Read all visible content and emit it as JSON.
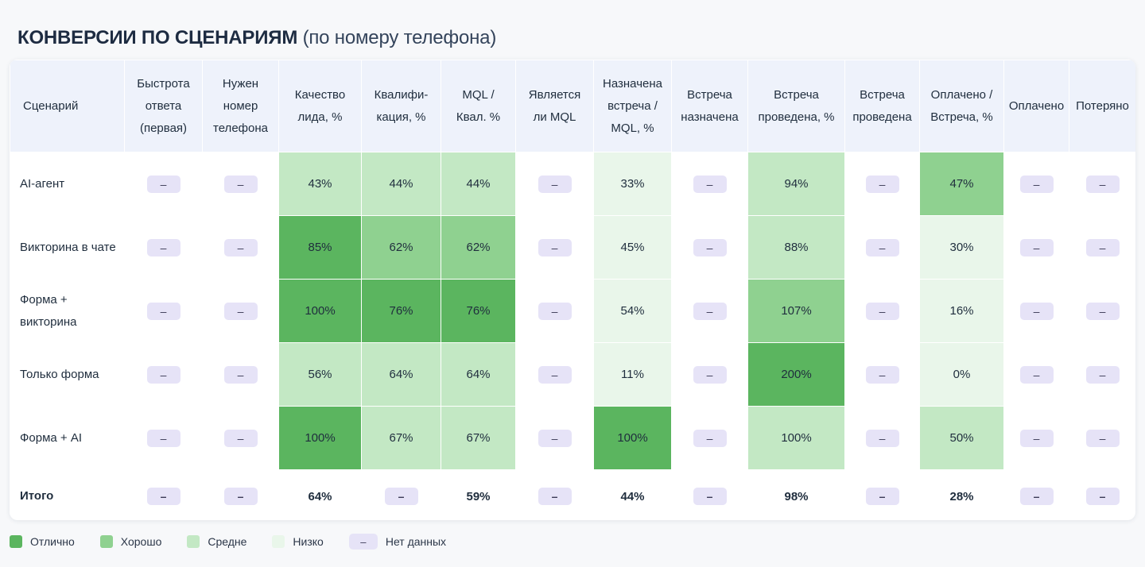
{
  "title": {
    "main": "КОНВЕРСИИ ПО СЦЕНАРИЯМ",
    "sub": "(по номеру телефона)"
  },
  "colors": {
    "excellent": "#5bb55f",
    "good": "#8fd190",
    "medium": "#c3e8c4",
    "low": "#e9f6ea",
    "no_data": "#e6e3f7",
    "header": "#eef2fb"
  },
  "table": {
    "columns": [
      [
        "Сценарий"
      ],
      [
        "Быстрота",
        "ответа",
        "(первая)"
      ],
      [
        "Нужен",
        "номер",
        "телефона"
      ],
      [
        "Качество",
        "лида, %"
      ],
      [
        "Квалифи-",
        "кация, %"
      ],
      [
        "MQL /",
        "Квал. %"
      ],
      [
        "Является",
        "ли MQL"
      ],
      [
        "Назначена",
        "встреча /",
        "MQL, %"
      ],
      [
        "Встреча",
        "назначена"
      ],
      [
        "Встреча",
        "проведена, %"
      ],
      [
        "Встреча",
        "проведена"
      ],
      [
        "Оплачено /",
        "Встреча, %"
      ],
      [
        "Оплачено"
      ],
      [
        "Потеряно"
      ]
    ],
    "rows": [
      {
        "scenario": [
          "AI-агент"
        ],
        "cells": [
          {
            "v": "–",
            "l": "na"
          },
          {
            "v": "–",
            "l": "na"
          },
          {
            "v": "43%",
            "l": "mid"
          },
          {
            "v": "44%",
            "l": "mid"
          },
          {
            "v": "44%",
            "l": "mid"
          },
          {
            "v": "–",
            "l": "na"
          },
          {
            "v": "33%",
            "l": "low"
          },
          {
            "v": "–",
            "l": "na"
          },
          {
            "v": "94%",
            "l": "mid"
          },
          {
            "v": "–",
            "l": "na"
          },
          {
            "v": "47%",
            "l": "good"
          },
          {
            "v": "–",
            "l": "na"
          },
          {
            "v": "–",
            "l": "na"
          }
        ]
      },
      {
        "scenario": [
          "Викторина в чате"
        ],
        "cells": [
          {
            "v": "–",
            "l": "na"
          },
          {
            "v": "–",
            "l": "na"
          },
          {
            "v": "85%",
            "l": "best"
          },
          {
            "v": "62%",
            "l": "good"
          },
          {
            "v": "62%",
            "l": "good"
          },
          {
            "v": "–",
            "l": "na"
          },
          {
            "v": "45%",
            "l": "low"
          },
          {
            "v": "–",
            "l": "na"
          },
          {
            "v": "88%",
            "l": "mid"
          },
          {
            "v": "–",
            "l": "na"
          },
          {
            "v": "30%",
            "l": "low"
          },
          {
            "v": "–",
            "l": "na"
          },
          {
            "v": "–",
            "l": "na"
          }
        ]
      },
      {
        "scenario": [
          "Форма +",
          "викторина"
        ],
        "cells": [
          {
            "v": "–",
            "l": "na"
          },
          {
            "v": "–",
            "l": "na"
          },
          {
            "v": "100%",
            "l": "best"
          },
          {
            "v": "76%",
            "l": "best"
          },
          {
            "v": "76%",
            "l": "best"
          },
          {
            "v": "–",
            "l": "na"
          },
          {
            "v": "54%",
            "l": "low"
          },
          {
            "v": "–",
            "l": "na"
          },
          {
            "v": "107%",
            "l": "good"
          },
          {
            "v": "–",
            "l": "na"
          },
          {
            "v": "16%",
            "l": "low"
          },
          {
            "v": "–",
            "l": "na"
          },
          {
            "v": "–",
            "l": "na"
          }
        ]
      },
      {
        "scenario": [
          "Только форма"
        ],
        "cells": [
          {
            "v": "–",
            "l": "na"
          },
          {
            "v": "–",
            "l": "na"
          },
          {
            "v": "56%",
            "l": "mid"
          },
          {
            "v": "64%",
            "l": "mid"
          },
          {
            "v": "64%",
            "l": "mid"
          },
          {
            "v": "–",
            "l": "na"
          },
          {
            "v": "11%",
            "l": "low"
          },
          {
            "v": "–",
            "l": "na"
          },
          {
            "v": "200%",
            "l": "best"
          },
          {
            "v": "–",
            "l": "na"
          },
          {
            "v": "0%",
            "l": "low"
          },
          {
            "v": "–",
            "l": "na"
          },
          {
            "v": "–",
            "l": "na"
          }
        ]
      },
      {
        "scenario": [
          "Форма + AI"
        ],
        "cells": [
          {
            "v": "–",
            "l": "na"
          },
          {
            "v": "–",
            "l": "na"
          },
          {
            "v": "100%",
            "l": "best"
          },
          {
            "v": "67%",
            "l": "mid"
          },
          {
            "v": "67%",
            "l": "mid"
          },
          {
            "v": "–",
            "l": "na"
          },
          {
            "v": "100%",
            "l": "best"
          },
          {
            "v": "–",
            "l": "na"
          },
          {
            "v": "100%",
            "l": "mid"
          },
          {
            "v": "–",
            "l": "na"
          },
          {
            "v": "50%",
            "l": "mid"
          },
          {
            "v": "–",
            "l": "na"
          },
          {
            "v": "–",
            "l": "na"
          }
        ]
      }
    ],
    "total": {
      "label": "Итого",
      "cells": [
        {
          "v": "–",
          "l": "na"
        },
        {
          "v": "–",
          "l": "na"
        },
        {
          "v": "64%",
          "l": "plain"
        },
        {
          "v": "–",
          "l": "na"
        },
        {
          "v": "59%",
          "l": "plain"
        },
        {
          "v": "–",
          "l": "na"
        },
        {
          "v": "44%",
          "l": "plain"
        },
        {
          "v": "–",
          "l": "na"
        },
        {
          "v": "98%",
          "l": "plain"
        },
        {
          "v": "–",
          "l": "na"
        },
        {
          "v": "28%",
          "l": "plain"
        },
        {
          "v": "–",
          "l": "na"
        },
        {
          "v": "–",
          "l": "na"
        }
      ]
    }
  },
  "legend": [
    {
      "label": "Отлично",
      "level": "best"
    },
    {
      "label": "Хорошо",
      "level": "good"
    },
    {
      "label": "Средне",
      "level": "mid"
    },
    {
      "label": "Низко",
      "level": "low"
    },
    {
      "label": "Нет данных",
      "level": "na",
      "symbol": "–"
    }
  ]
}
